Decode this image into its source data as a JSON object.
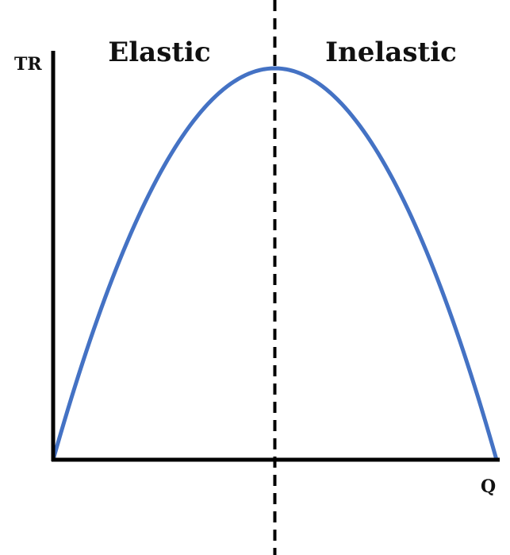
{
  "chart_data": {
    "type": "line",
    "title": "",
    "xlabel": "Q",
    "ylabel": "TR",
    "regions": [
      {
        "label": "Elastic",
        "side": "left"
      },
      {
        "label": "Inelastic",
        "side": "right"
      }
    ],
    "series": [
      {
        "curve": "parabola",
        "x": [
          0,
          0.125,
          0.25,
          0.375,
          0.5,
          0.625,
          0.75,
          0.875,
          1
        ],
        "y": [
          0,
          0.4375,
          0.75,
          0.9375,
          1,
          0.9375,
          0.75,
          0.4375,
          0
        ]
      }
    ],
    "divider_x": 0.5,
    "xlim": [
      0,
      1
    ],
    "ylim": [
      0,
      1
    ],
    "grid": false,
    "colors": {
      "curve": "#4472c4",
      "axes": "#000000",
      "divider": "#000000"
    }
  }
}
